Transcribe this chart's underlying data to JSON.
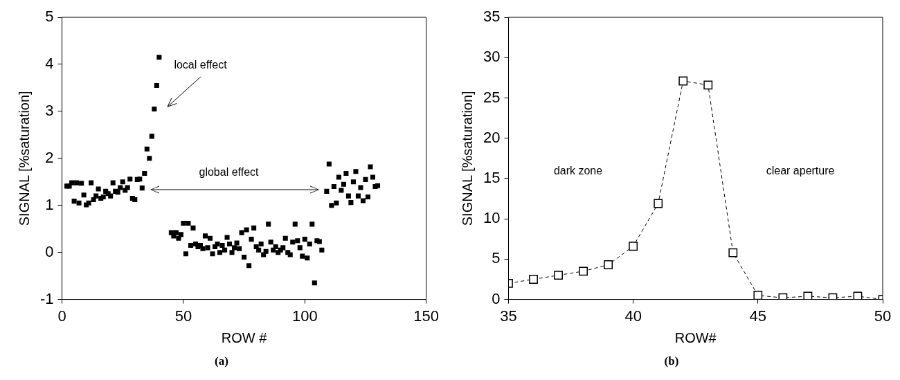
{
  "chart_data": [
    {
      "type": "scatter",
      "title": "(a)",
      "xlabel": "ROW #",
      "ylabel": "SIGNAL [%saturation]",
      "marker": "square",
      "grid": false,
      "legend": false,
      "xlim": [
        0,
        150
      ],
      "xticks": [
        0,
        50,
        100,
        150
      ],
      "ylim": [
        -1,
        5
      ],
      "yticks": [
        -1,
        0,
        1,
        2,
        3,
        4,
        5
      ],
      "annotations": [
        "local effect",
        "global effect"
      ],
      "series": [
        {
          "color": "#000000",
          "x": [
            2,
            3,
            4,
            5,
            6,
            7,
            8,
            9,
            10,
            11,
            12,
            13,
            14,
            15,
            16,
            17,
            18,
            19,
            20,
            21,
            22,
            23,
            24,
            25,
            26,
            27,
            28,
            29,
            30,
            31,
            32,
            33,
            34,
            35,
            36,
            37,
            38,
            39,
            40,
            45,
            46,
            47,
            48,
            49,
            50,
            51,
            52,
            53,
            54,
            55,
            56,
            57,
            58,
            59,
            60,
            61,
            62,
            63,
            64,
            65,
            66,
            67,
            68,
            69,
            70,
            71,
            72,
            73,
            74,
            75,
            76,
            77,
            78,
            79,
            80,
            81,
            82,
            83,
            84,
            85,
            86,
            87,
            88,
            89,
            90,
            91,
            92,
            93,
            94,
            95,
            96,
            97,
            98,
            99,
            100,
            101,
            102,
            103,
            104,
            105,
            106,
            107,
            109,
            110,
            111,
            112,
            113,
            114,
            115,
            116,
            117,
            118,
            119,
            120,
            121,
            122,
            123,
            124,
            125,
            126,
            127,
            128,
            129,
            130
          ],
          "values": [
            1.41,
            1.41,
            1.48,
            1.09,
            1.48,
            1.05,
            1.47,
            1.22,
            1.01,
            1.05,
            1.48,
            1.12,
            1.2,
            1.35,
            1.15,
            1.18,
            1.3,
            1.25,
            1.2,
            1.48,
            1.3,
            1.28,
            1.38,
            1.5,
            1.32,
            1.38,
            1.56,
            1.15,
            1.12,
            1.55,
            1.56,
            1.37,
            1.68,
            2.2,
            2.0,
            2.47,
            3.05,
            3.55,
            4.15,
            0.42,
            0.35,
            0.42,
            0.3,
            0.38,
            0.62,
            -0.03,
            0.62,
            0.15,
            0.52,
            0.18,
            0.12,
            0.15,
            0.08,
            0.35,
            0.1,
            0.3,
            -0.03,
            0.12,
            0.18,
            0.0,
            0.15,
            0.05,
            0.32,
            0.18,
            0.0,
            0.1,
            0.2,
            0.08,
            0.42,
            -0.1,
            0.48,
            -0.28,
            0.28,
            0.52,
            0.12,
            0.05,
            0.18,
            -0.05,
            0.02,
            0.6,
            0.22,
            0.05,
            0.12,
            0.0,
            0.05,
            0.1,
            0.3,
            0.0,
            -0.05,
            0.22,
            0.6,
            0.25,
            0.1,
            -0.08,
            0.28,
            -0.12,
            0.18,
            0.6,
            -0.65,
            0.25,
            0.23,
            0.05,
            1.3,
            1.88,
            1.0,
            1.4,
            1.05,
            1.6,
            1.32,
            1.45,
            1.68,
            1.2,
            1.06,
            1.5,
            1.72,
            1.2,
            1.38,
            1.1,
            1.55,
            1.18,
            1.82,
            1.6,
            1.4,
            1.42
          ]
        }
      ]
    },
    {
      "type": "line",
      "title": "(b)",
      "xlabel": "ROW#",
      "ylabel": "SIGNAL [%saturation]",
      "marker": "square",
      "line_style": "dashed",
      "grid": false,
      "legend": false,
      "xlim": [
        35,
        50
      ],
      "xticks": [
        35,
        40,
        45,
        50
      ],
      "ylim": [
        0,
        35
      ],
      "yticks": [
        0,
        5,
        10,
        15,
        20,
        25,
        30,
        35
      ],
      "annotations": [
        "dark zone",
        "clear aperture"
      ],
      "series": [
        {
          "color": "#000000",
          "x": [
            35,
            36,
            37,
            38,
            39,
            40,
            41,
            42,
            43,
            44,
            45,
            46,
            47,
            48,
            49,
            50
          ],
          "values": [
            2.0,
            2.5,
            3.0,
            3.5,
            4.3,
            6.6,
            11.9,
            27.1,
            26.6,
            5.8,
            0.5,
            0.2,
            0.4,
            0.2,
            0.4,
            0.0
          ]
        }
      ]
    }
  ]
}
